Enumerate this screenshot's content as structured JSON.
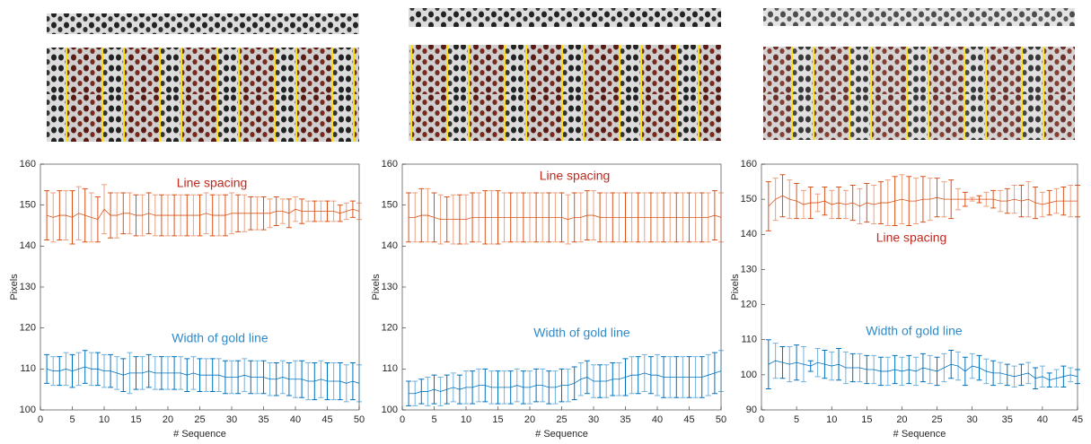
{
  "chart_data": [
    {
      "type": "errorbar",
      "x_label": "# Sequence",
      "y_label": "Pixels",
      "x": [
        1,
        2,
        3,
        4,
        5,
        6,
        7,
        8,
        9,
        10,
        11,
        12,
        13,
        14,
        15,
        16,
        17,
        18,
        19,
        20,
        21,
        22,
        23,
        24,
        25,
        26,
        27,
        28,
        29,
        30,
        31,
        32,
        33,
        34,
        35,
        36,
        37,
        38,
        39,
        40,
        41,
        42,
        43,
        44,
        45,
        46,
        47,
        48,
        49,
        50
      ],
      "xlim": [
        0,
        50
      ],
      "xticks": [
        0,
        5,
        10,
        15,
        20,
        25,
        30,
        35,
        40,
        45,
        50
      ],
      "ylim": [
        100,
        160
      ],
      "yticks": [
        100,
        110,
        120,
        130,
        140,
        150,
        160
      ],
      "series": [
        {
          "name": "Line spacing",
          "color": "#d95319",
          "label_color": "#c0281e",
          "values": [
            147.5,
            147,
            147.5,
            147.5,
            147,
            148,
            147.5,
            147,
            146.5,
            149,
            147.5,
            147.5,
            148,
            148,
            147.5,
            147.5,
            148,
            147.5,
            147.5,
            147.5,
            147.5,
            147.5,
            147.5,
            147.5,
            147.5,
            148,
            147.5,
            147.5,
            147.5,
            148,
            148,
            148,
            148,
            148,
            148,
            148,
            148.5,
            148.5,
            148,
            149,
            148.5,
            148.5,
            148.5,
            148.5,
            148.5,
            148.5,
            148,
            148.5,
            149,
            148.5
          ],
          "errors": [
            6,
            6,
            6,
            6,
            6.5,
            6.5,
            6.5,
            6,
            5.5,
            6,
            5.5,
            5.5,
            5,
            5,
            5,
            5,
            5,
            5,
            5,
            5,
            5,
            5,
            5,
            5,
            5,
            5,
            5,
            5,
            5,
            5,
            4.5,
            4.5,
            4,
            4,
            4,
            3.5,
            3.5,
            3,
            3.5,
            3,
            3,
            2.5,
            2.5,
            2.5,
            2.5,
            2.5,
            2,
            2,
            2,
            2
          ]
        },
        {
          "name": "Width of gold line",
          "color": "#0072bd",
          "label_color": "#2e8bc9",
          "values": [
            110,
            109.5,
            109.5,
            110,
            109.5,
            110,
            110.5,
            110,
            110,
            109.5,
            109.5,
            109,
            108.5,
            109,
            109,
            109,
            109.5,
            109,
            109,
            109,
            109,
            109,
            108.5,
            109,
            108.5,
            108.5,
            108.5,
            108.5,
            108,
            108,
            108,
            108.5,
            108,
            108,
            108,
            107.5,
            107.5,
            108,
            107.5,
            107.5,
            107.5,
            107,
            107,
            107.5,
            107,
            107,
            107,
            106.5,
            107,
            106.5
          ],
          "errors": [
            3.5,
            3.5,
            3.5,
            4,
            4,
            4,
            4,
            4,
            4,
            4,
            4,
            4,
            4,
            5,
            4,
            4,
            4,
            4,
            4,
            4,
            4,
            4,
            4,
            4,
            4,
            4,
            4,
            4,
            4,
            4,
            4,
            4,
            4,
            4,
            4,
            4,
            4,
            4,
            4,
            4.5,
            4.5,
            4.5,
            4.5,
            4.5,
            4.5,
            4.5,
            4.5,
            4.5,
            4.5,
            4.5
          ]
        }
      ]
    },
    {
      "type": "errorbar",
      "x_label": "# Sequence",
      "y_label": "Pixels",
      "x": [
        1,
        2,
        3,
        4,
        5,
        6,
        7,
        8,
        9,
        10,
        11,
        12,
        13,
        14,
        15,
        16,
        17,
        18,
        19,
        20,
        21,
        22,
        23,
        24,
        25,
        26,
        27,
        28,
        29,
        30,
        31,
        32,
        33,
        34,
        35,
        36,
        37,
        38,
        39,
        40,
        41,
        42,
        43,
        44,
        45,
        46,
        47,
        48,
        49,
        50
      ],
      "xlim": [
        0,
        50
      ],
      "xticks": [
        0,
        5,
        10,
        15,
        20,
        25,
        30,
        35,
        40,
        45,
        50
      ],
      "ylim": [
        100,
        160
      ],
      "yticks": [
        100,
        110,
        120,
        130,
        140,
        150,
        160
      ],
      "series": [
        {
          "name": "Line spacing",
          "color": "#d95319",
          "label_color": "#c0281e",
          "values": [
            147,
            147,
            147.5,
            147.5,
            147,
            146.5,
            146.5,
            146.5,
            146.5,
            146.5,
            147,
            147,
            147,
            147,
            147,
            147,
            147,
            147,
            147,
            147,
            147,
            147,
            147,
            147,
            147,
            146.5,
            147,
            147,
            147.5,
            147.5,
            147,
            147,
            147,
            147,
            147,
            147,
            147,
            147,
            147,
            147,
            147,
            147,
            147,
            147,
            147,
            147,
            147,
            147,
            147.5,
            147
          ],
          "errors": [
            6,
            6,
            6.5,
            6.5,
            6,
            6,
            5.5,
            6,
            6,
            6,
            6,
            6,
            6.5,
            6.5,
            6.5,
            6,
            6,
            6,
            6,
            6,
            6,
            6,
            6,
            6,
            6,
            6,
            6,
            6,
            6,
            6,
            6,
            6,
            6,
            6,
            6,
            6,
            6,
            6,
            6,
            6,
            6,
            6,
            6,
            6,
            6,
            6,
            6,
            6,
            6,
            6
          ]
        },
        {
          "name": "Width of gold line",
          "color": "#0072bd",
          "label_color": "#2e8bc9",
          "values": [
            104,
            104,
            104.5,
            104.5,
            105,
            104.5,
            105,
            105.5,
            105,
            105.5,
            105.5,
            106,
            106,
            105.5,
            105.5,
            105.5,
            105.5,
            106,
            105.5,
            105.5,
            106,
            106,
            105.5,
            105.5,
            106,
            106,
            106.5,
            107.5,
            108,
            107,
            107,
            107,
            107.5,
            107.5,
            108,
            108.5,
            108.5,
            109,
            108.5,
            108.5,
            108,
            108,
            108,
            108,
            108,
            108,
            108,
            108.5,
            109,
            109.5
          ],
          "errors": [
            3,
            3,
            3,
            3.5,
            3.5,
            3.5,
            3.5,
            3.5,
            3.5,
            4,
            4,
            4,
            4,
            4,
            4,
            4,
            4,
            4,
            4,
            4,
            4,
            4,
            4,
            4,
            4,
            4,
            4,
            4,
            4,
            4,
            4,
            4,
            4,
            4,
            4.5,
            4.5,
            4.5,
            4.5,
            4.5,
            5,
            5,
            5,
            5,
            5,
            5,
            5,
            5,
            5,
            5,
            5
          ]
        }
      ]
    },
    {
      "type": "errorbar",
      "x_label": "# Sequence",
      "y_label": "Pixels",
      "x": [
        1,
        2,
        3,
        4,
        5,
        6,
        7,
        8,
        9,
        10,
        11,
        12,
        13,
        14,
        15,
        16,
        17,
        18,
        19,
        20,
        21,
        22,
        23,
        24,
        25,
        26,
        27,
        28,
        29,
        30,
        31,
        32,
        33,
        34,
        35,
        36,
        37,
        38,
        39,
        40,
        41,
        42,
        43,
        44,
        45
      ],
      "xlim": [
        0,
        45
      ],
      "xticks": [
        0,
        5,
        10,
        15,
        20,
        25,
        30,
        35,
        40,
        45
      ],
      "ylim": [
        90,
        160
      ],
      "yticks": [
        90,
        100,
        110,
        120,
        130,
        140,
        150,
        160
      ],
      "series": [
        {
          "name": "Line spacing",
          "color": "#d95319",
          "label_color": "#c0281e",
          "values": [
            148,
            150,
            151,
            150,
            149.5,
            148.5,
            149,
            149,
            149.5,
            148.5,
            149,
            148.5,
            149,
            148,
            149,
            148.5,
            149,
            149,
            149.5,
            150,
            149.5,
            149.5,
            150,
            150,
            150.5,
            150,
            150,
            150,
            150,
            150,
            150,
            150,
            150,
            149.5,
            149.5,
            150,
            149.5,
            150,
            149,
            148.5,
            149,
            149.5,
            149.5,
            149.5,
            149.5
          ],
          "errors": [
            7,
            6,
            6,
            5.5,
            5,
            4,
            4.5,
            2.5,
            4,
            4,
            4.5,
            4,
            5,
            5,
            5.5,
            5.5,
            6,
            6.5,
            7,
            7,
            7,
            6.5,
            6.5,
            6,
            5.5,
            5,
            5.5,
            3,
            2,
            0.5,
            1,
            2,
            2.5,
            3,
            3.5,
            4,
            4.5,
            5,
            4.5,
            3.5,
            3.5,
            3.5,
            4,
            4.5,
            4.5
          ]
        },
        {
          "name": "Width of gold line",
          "color": "#0072bd",
          "label_color": "#2e8bc9",
          "values": [
            103,
            104,
            103.5,
            103,
            103.5,
            103,
            102.5,
            103.5,
            103,
            102.5,
            103,
            102,
            102,
            102,
            101.5,
            101.5,
            101,
            101,
            101.5,
            101,
            101.5,
            101,
            102,
            101.5,
            101,
            102,
            103,
            102.5,
            101,
            102.5,
            102,
            101,
            100.5,
            100.5,
            100,
            99.5,
            100,
            100.5,
            99,
            99.5,
            98.5,
            99,
            99.5,
            100,
            99.5
          ],
          "errors": [
            7,
            5,
            4.5,
            5,
            5,
            5,
            1.5,
            4,
            4,
            4,
            4.5,
            4.5,
            4,
            4,
            4,
            4,
            4,
            4,
            4,
            4,
            4,
            4,
            4,
            4,
            4,
            4,
            4,
            4,
            4,
            3.5,
            3.5,
            3.5,
            3.5,
            3,
            3,
            3,
            3,
            3,
            3,
            3,
            2,
            2.5,
            3,
            2,
            2
          ]
        }
      ]
    }
  ]
}
